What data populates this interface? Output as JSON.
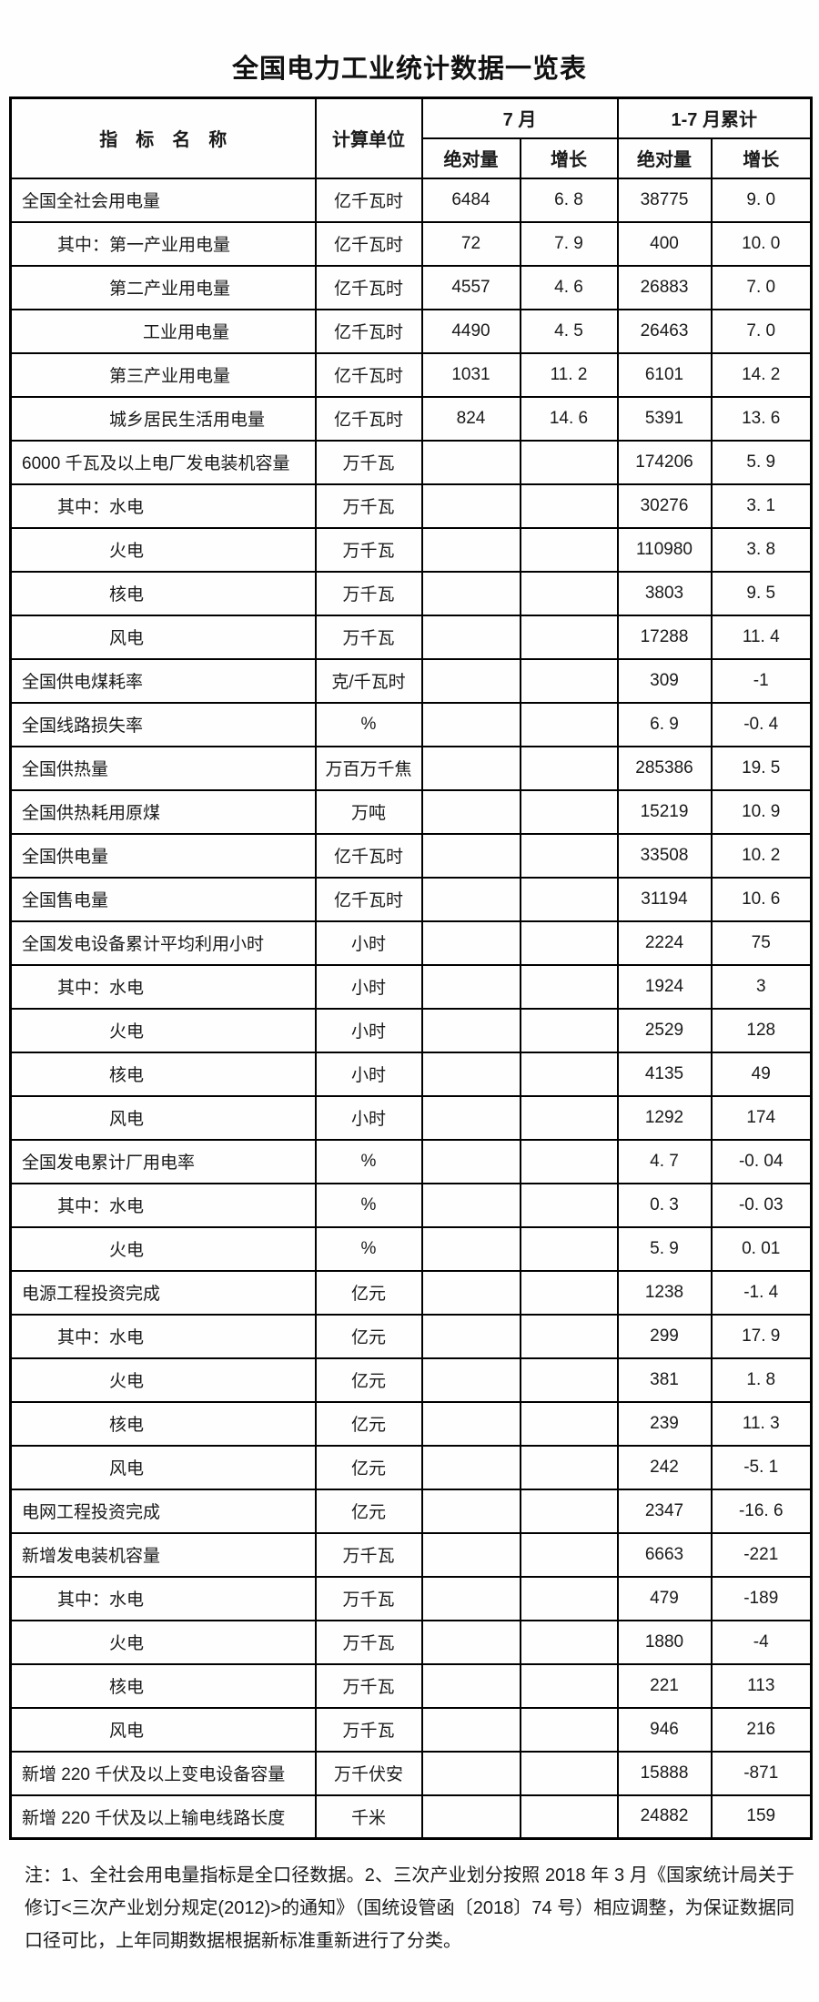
{
  "page": {
    "title": "全国电力工业统计数据一览表"
  },
  "table": {
    "header": {
      "indicator": "指　标　名　称",
      "unit": "计算单位",
      "july": "7 月",
      "cumulative": "1-7 月累计",
      "absolute": "绝对量",
      "growth": "增长"
    },
    "rows": [
      {
        "name": "全国全社会用电量",
        "indent": 0,
        "unit": "亿千瓦时",
        "july_abs": "6484",
        "july_growth": "6. 8",
        "cum_abs": "38775",
        "cum_growth": "9. 0"
      },
      {
        "name": "其中：第一产业用电量",
        "indent": 1,
        "unit": "亿千瓦时",
        "july_abs": "72",
        "july_growth": "7. 9",
        "cum_abs": "400",
        "cum_growth": "10. 0"
      },
      {
        "name": "第二产业用电量",
        "indent": 2,
        "unit": "亿千瓦时",
        "july_abs": "4557",
        "july_growth": "4. 6",
        "cum_abs": "26883",
        "cum_growth": "7. 0"
      },
      {
        "name": "工业用电量",
        "indent": 3,
        "unit": "亿千瓦时",
        "july_abs": "4490",
        "july_growth": "4. 5",
        "cum_abs": "26463",
        "cum_growth": "7. 0"
      },
      {
        "name": "第三产业用电量",
        "indent": 2,
        "unit": "亿千瓦时",
        "july_abs": "1031",
        "july_growth": "11. 2",
        "cum_abs": "6101",
        "cum_growth": "14. 2"
      },
      {
        "name": "城乡居民生活用电量",
        "indent": 2,
        "unit": "亿千瓦时",
        "july_abs": "824",
        "july_growth": "14. 6",
        "cum_abs": "5391",
        "cum_growth": "13. 6"
      },
      {
        "name": "6000 千瓦及以上电厂发电装机容量",
        "indent": 0,
        "unit": "万千瓦",
        "july_abs": "",
        "july_growth": "",
        "cum_abs": "174206",
        "cum_growth": "5. 9"
      },
      {
        "name": "其中：水电",
        "indent": 1,
        "unit": "万千瓦",
        "july_abs": "",
        "july_growth": "",
        "cum_abs": "30276",
        "cum_growth": "3. 1"
      },
      {
        "name": "火电",
        "indent": 2,
        "unit": "万千瓦",
        "july_abs": "",
        "july_growth": "",
        "cum_abs": "110980",
        "cum_growth": "3. 8"
      },
      {
        "name": "核电",
        "indent": 2,
        "unit": "万千瓦",
        "july_abs": "",
        "july_growth": "",
        "cum_abs": "3803",
        "cum_growth": "9. 5"
      },
      {
        "name": "风电",
        "indent": 2,
        "unit": "万千瓦",
        "july_abs": "",
        "july_growth": "",
        "cum_abs": "17288",
        "cum_growth": "11. 4"
      },
      {
        "name": "全国供电煤耗率",
        "indent": 0,
        "unit": "克/千瓦时",
        "july_abs": "",
        "july_growth": "",
        "cum_abs": "309",
        "cum_growth": "-1"
      },
      {
        "name": "全国线路损失率",
        "indent": 0,
        "unit": "%",
        "july_abs": "",
        "july_growth": "",
        "cum_abs": "6. 9",
        "cum_growth": "-0. 4"
      },
      {
        "name": "全国供热量",
        "indent": 0,
        "unit": "万百万千焦",
        "july_abs": "",
        "july_growth": "",
        "cum_abs": "285386",
        "cum_growth": "19. 5"
      },
      {
        "name": "全国供热耗用原煤",
        "indent": 0,
        "unit": "万吨",
        "july_abs": "",
        "july_growth": "",
        "cum_abs": "15219",
        "cum_growth": "10. 9"
      },
      {
        "name": "全国供电量",
        "indent": 0,
        "unit": "亿千瓦时",
        "july_abs": "",
        "july_growth": "",
        "cum_abs": "33508",
        "cum_growth": "10. 2"
      },
      {
        "name": "全国售电量",
        "indent": 0,
        "unit": "亿千瓦时",
        "july_abs": "",
        "july_growth": "",
        "cum_abs": "31194",
        "cum_growth": "10. 6"
      },
      {
        "name": "全国发电设备累计平均利用小时",
        "indent": 0,
        "unit": "小时",
        "july_abs": "",
        "july_growth": "",
        "cum_abs": "2224",
        "cum_growth": "75"
      },
      {
        "name": "其中：水电",
        "indent": 1,
        "unit": "小时",
        "july_abs": "",
        "july_growth": "",
        "cum_abs": "1924",
        "cum_growth": "3"
      },
      {
        "name": "火电",
        "indent": 2,
        "unit": "小时",
        "july_abs": "",
        "july_growth": "",
        "cum_abs": "2529",
        "cum_growth": "128"
      },
      {
        "name": "核电",
        "indent": 2,
        "unit": "小时",
        "july_abs": "",
        "july_growth": "",
        "cum_abs": "4135",
        "cum_growth": "49"
      },
      {
        "name": "风电",
        "indent": 2,
        "unit": "小时",
        "july_abs": "",
        "july_growth": "",
        "cum_abs": "1292",
        "cum_growth": "174"
      },
      {
        "name": "全国发电累计厂用电率",
        "indent": 0,
        "unit": "%",
        "july_abs": "",
        "july_growth": "",
        "cum_abs": "4. 7",
        "cum_growth": "-0. 04"
      },
      {
        "name": "其中：水电",
        "indent": 1,
        "unit": "%",
        "july_abs": "",
        "july_growth": "",
        "cum_abs": "0. 3",
        "cum_growth": "-0. 03"
      },
      {
        "name": "火电",
        "indent": 2,
        "unit": "%",
        "july_abs": "",
        "july_growth": "",
        "cum_abs": "5. 9",
        "cum_growth": "0. 01"
      },
      {
        "name": "电源工程投资完成",
        "indent": 0,
        "unit": "亿元",
        "july_abs": "",
        "july_growth": "",
        "cum_abs": "1238",
        "cum_growth": "-1. 4"
      },
      {
        "name": "其中：水电",
        "indent": 1,
        "unit": "亿元",
        "july_abs": "",
        "july_growth": "",
        "cum_abs": "299",
        "cum_growth": "17. 9"
      },
      {
        "name": "火电",
        "indent": 2,
        "unit": "亿元",
        "july_abs": "",
        "july_growth": "",
        "cum_abs": "381",
        "cum_growth": "1. 8"
      },
      {
        "name": "核电",
        "indent": 2,
        "unit": "亿元",
        "july_abs": "",
        "july_growth": "",
        "cum_abs": "239",
        "cum_growth": "11. 3"
      },
      {
        "name": "风电",
        "indent": 2,
        "unit": "亿元",
        "july_abs": "",
        "july_growth": "",
        "cum_abs": "242",
        "cum_growth": "-5. 1"
      },
      {
        "name": "电网工程投资完成",
        "indent": 0,
        "unit": "亿元",
        "july_abs": "",
        "july_growth": "",
        "cum_abs": "2347",
        "cum_growth": "-16. 6"
      },
      {
        "name": "新增发电装机容量",
        "indent": 0,
        "unit": "万千瓦",
        "july_abs": "",
        "july_growth": "",
        "cum_abs": "6663",
        "cum_growth": "-221"
      },
      {
        "name": "其中：水电",
        "indent": 1,
        "unit": "万千瓦",
        "july_abs": "",
        "july_growth": "",
        "cum_abs": "479",
        "cum_growth": "-189"
      },
      {
        "name": "火电",
        "indent": 2,
        "unit": "万千瓦",
        "july_abs": "",
        "july_growth": "",
        "cum_abs": "1880",
        "cum_growth": "-4"
      },
      {
        "name": "核电",
        "indent": 2,
        "unit": "万千瓦",
        "july_abs": "",
        "july_growth": "",
        "cum_abs": "221",
        "cum_growth": "113"
      },
      {
        "name": "风电",
        "indent": 2,
        "unit": "万千瓦",
        "july_abs": "",
        "july_growth": "",
        "cum_abs": "946",
        "cum_growth": "216"
      },
      {
        "name": "新增 220 千伏及以上变电设备容量",
        "indent": 0,
        "unit": "万千伏安",
        "july_abs": "",
        "july_growth": "",
        "cum_abs": "15888",
        "cum_growth": "-871"
      },
      {
        "name": "新增 220 千伏及以上输电线路长度",
        "indent": 0,
        "unit": "千米",
        "july_abs": "",
        "july_growth": "",
        "cum_abs": "24882",
        "cum_growth": "159"
      }
    ]
  },
  "footnote": "注：1、全社会用电量指标是全口径数据。2、三次产业划分按照 2018 年 3 月《国家统计局关于修订<三次产业划分规定(2012)>的通知》（国统设管函〔2018〕74 号）相应调整，为保证数据同口径可比，上年同期数据根据新标准重新进行了分类。"
}
